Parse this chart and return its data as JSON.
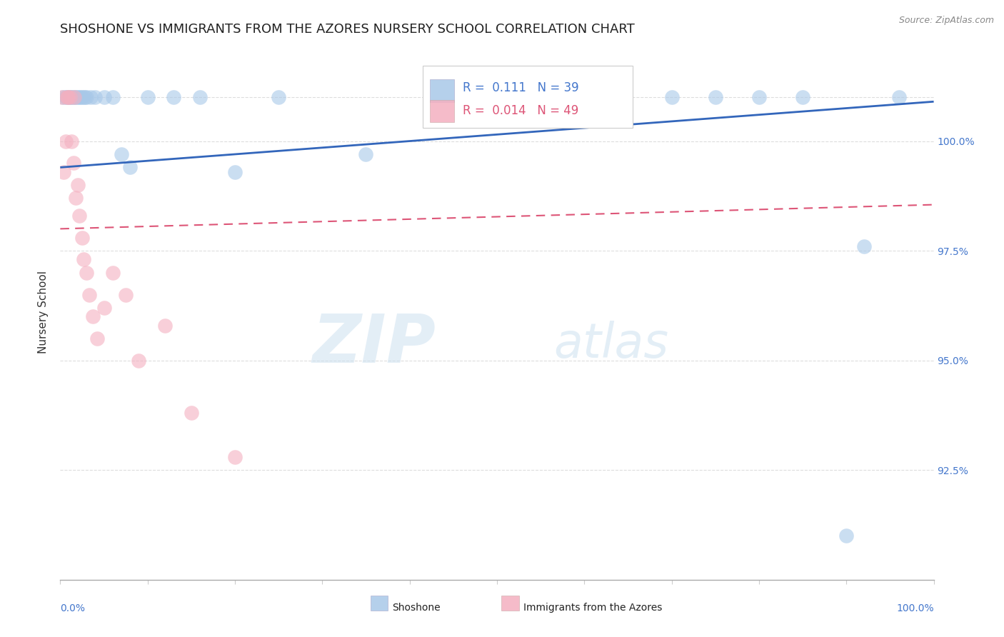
{
  "title": "SHOSHONE VS IMMIGRANTS FROM THE AZORES NURSERY SCHOOL CORRELATION CHART",
  "source": "Source: ZipAtlas.com",
  "ylabel": "Nursery School",
  "xlim": [
    0.0,
    100.0
  ],
  "ylim": [
    90.0,
    102.2
  ],
  "yticks": [
    92.5,
    95.0,
    97.5,
    100.0
  ],
  "ytick_labels": [
    "92.5%",
    "95.0%",
    "97.5%",
    "100.0%"
  ],
  "legend_r_blue": "0.111",
  "legend_n_blue": "39",
  "legend_r_pink": "0.014",
  "legend_n_pink": "49",
  "blue_color": "#a8c8e8",
  "pink_color": "#f4b0c0",
  "trend_blue_color": "#3366bb",
  "trend_pink_color": "#dd5577",
  "ytick_color": "#4477cc",
  "background_color": "#ffffff",
  "watermark_zip": "ZIP",
  "watermark_atlas": "atlas",
  "blue_trend_start_y": 99.4,
  "blue_trend_end_y": 100.9,
  "pink_trend_start_y": 98.0,
  "pink_trend_end_y": 98.55,
  "blue_x": [
    0.3,
    0.6,
    0.8,
    1.0,
    1.2,
    1.4,
    1.6,
    1.8,
    2.0,
    2.2,
    2.4,
    2.6,
    2.8,
    3.0,
    3.5,
    4.0,
    5.0,
    6.0,
    7.0,
    8.0,
    10.0,
    13.0,
    16.0,
    20.0,
    25.0,
    35.0,
    50.0,
    60.0,
    70.0,
    75.0,
    80.0,
    85.0,
    92.0,
    96.0
  ],
  "blue_y": [
    101.0,
    101.0,
    101.0,
    101.0,
    101.0,
    101.0,
    101.0,
    101.0,
    101.0,
    101.0,
    101.0,
    101.0,
    101.0,
    101.0,
    101.0,
    101.0,
    101.0,
    101.0,
    99.7,
    99.4,
    101.0,
    101.0,
    101.0,
    99.3,
    101.0,
    99.7,
    101.0,
    101.0,
    101.0,
    101.0,
    101.0,
    101.0,
    97.6,
    101.0
  ],
  "pink_x": [
    0.2,
    0.4,
    0.6,
    0.8,
    0.9,
    1.1,
    1.3,
    1.5,
    1.6,
    1.8,
    2.0,
    2.2,
    2.5,
    2.7,
    3.0,
    3.3,
    3.7,
    4.2,
    5.0,
    6.0,
    7.5,
    9.0,
    12.0,
    15.0,
    20.0
  ],
  "pink_y": [
    101.0,
    99.3,
    100.0,
    101.0,
    101.0,
    101.0,
    100.0,
    99.5,
    101.0,
    98.7,
    99.0,
    98.3,
    97.8,
    97.3,
    97.0,
    96.5,
    96.0,
    95.5,
    96.2,
    97.0,
    96.5,
    95.0,
    95.8,
    93.8,
    92.8
  ],
  "blue_lone_x": [
    90.0
  ],
  "blue_lone_y": [
    91.0
  ]
}
